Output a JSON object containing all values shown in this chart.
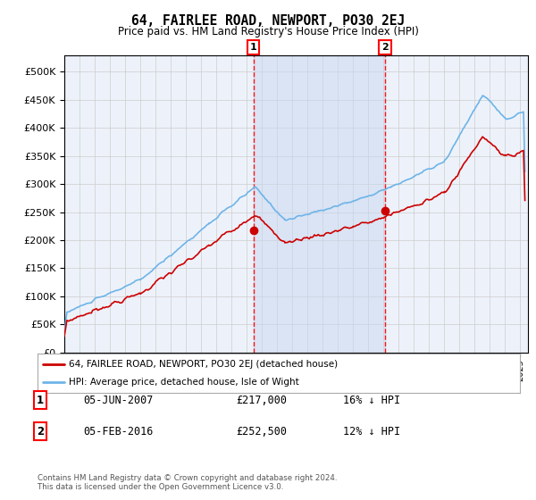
{
  "title": "64, FAIRLEE ROAD, NEWPORT, PO30 2EJ",
  "subtitle": "Price paid vs. HM Land Registry's House Price Index (HPI)",
  "ylim": [
    0,
    530000
  ],
  "yticks": [
    0,
    50000,
    100000,
    150000,
    200000,
    250000,
    300000,
    350000,
    400000,
    450000,
    500000
  ],
  "xlim_start": 1995.0,
  "xlim_end": 2025.5,
  "hpi_color": "#6eb4e8",
  "price_color": "#cc0000",
  "sale1_date": 2007.43,
  "sale1_price": 217000,
  "sale2_date": 2016.09,
  "sale2_price": 252500,
  "legend_line1": "64, FAIRLEE ROAD, NEWPORT, PO30 2EJ (detached house)",
  "legend_line2": "HPI: Average price, detached house, Isle of Wight",
  "annotation1_text": "05-JUN-2007",
  "annotation1_price": "£217,000",
  "annotation1_hpi": "16% ↓ HPI",
  "annotation2_text": "05-FEB-2016",
  "annotation2_price": "£252,500",
  "annotation2_hpi": "12% ↓ HPI",
  "footer": "Contains HM Land Registry data © Crown copyright and database right 2024.\nThis data is licensed under the Open Government Licence v3.0.",
  "background_color": "#ffffff",
  "plot_bg_color": "#edf2fa",
  "grid_color": "#cccccc"
}
